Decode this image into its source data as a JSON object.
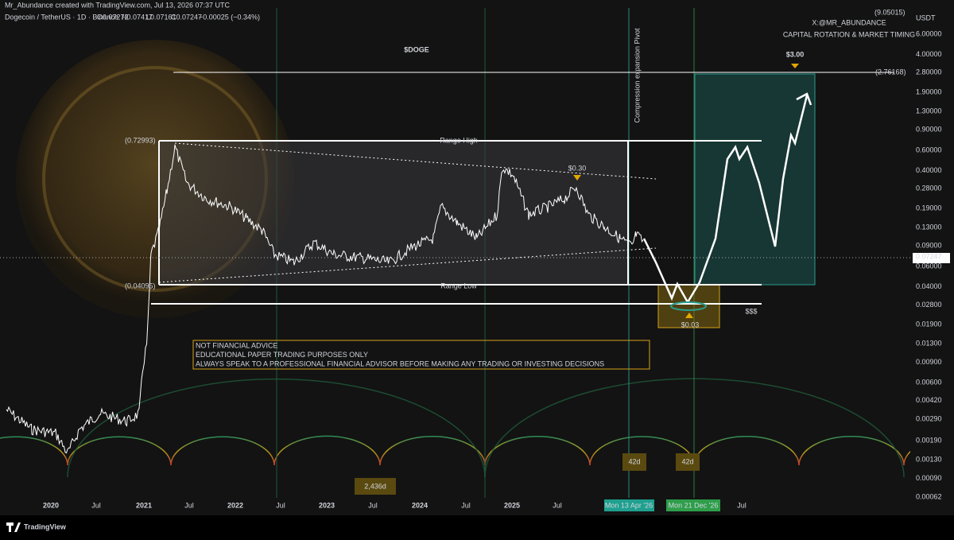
{
  "header": {
    "credit": "Mr_Abundance created with TradingView.com, Jul 13, 2026 07:37 UTC",
    "symbol": "Dogecoin / TetherUS · 1D · Binance",
    "ohlc": [
      "O0.07272",
      "H0.07417",
      "L0.07161",
      "C0.07247",
      "−0.00025 (−0.34%)"
    ]
  },
  "chart": {
    "title": "$DOGE",
    "author": "X:@MR_ABUNDANCE",
    "tagline": "CAPITAL ROTATION & MARKET TIMING",
    "pivot_label": "Compression expansion Pivot",
    "annotations": {
      "target": "$3.00",
      "top_level": "(2.76168)",
      "range_high_price": "(0.72993)",
      "range_high": "Range High",
      "range_low_price": "(0.04095)",
      "range_low": "Range Low",
      "mid_target": "$0.30",
      "bottom_target": "$0.03",
      "money": "$$$"
    },
    "disclaimer": [
      "NOT FINANCIAL ADVICE",
      "EDUCATIONAL PAPER TRADING PURPOSES ONLY",
      "ALWAYS SPEAK TO A PROFESSIONAL FINANCIAL ADVISOR BEFORE MAKING ANY TRADING OR INVESTING DECISIONS"
    ],
    "durations": [
      "42d",
      "42d",
      "2,436d"
    ],
    "price_axis": {
      "currency": "USDT",
      "top_label": "(9.05015)",
      "ticks": [
        {
          "value": 6,
          "label": "6.00000"
        },
        {
          "value": 4,
          "label": "4.00000"
        },
        {
          "value": 2.8,
          "label": "2.80000"
        },
        {
          "value": 1.9,
          "label": "1.90000"
        },
        {
          "value": 1.3,
          "label": "1.30000"
        },
        {
          "value": 0.9,
          "label": "0.90000"
        },
        {
          "value": 0.6,
          "label": "0.60000"
        },
        {
          "value": 0.4,
          "label": "0.40000"
        },
        {
          "value": 0.28,
          "label": "0.28000"
        },
        {
          "value": 0.19,
          "label": "0.19000"
        },
        {
          "value": 0.13,
          "label": "0.13000"
        },
        {
          "value": 0.09,
          "label": "0.09000"
        },
        {
          "value": 0.06,
          "label": "0.06000"
        },
        {
          "value": 0.04,
          "label": "0.04000"
        },
        {
          "value": 0.028,
          "label": "0.02800"
        },
        {
          "value": 0.019,
          "label": "0.01900"
        },
        {
          "value": 0.013,
          "label": "0.01300"
        },
        {
          "value": 0.009,
          "label": "0.00900"
        },
        {
          "value": 0.006,
          "label": "0.00600"
        },
        {
          "value": 0.0042,
          "label": "0.00420"
        },
        {
          "value": 0.0029,
          "label": "0.00290"
        },
        {
          "value": 0.0019,
          "label": "0.00190"
        },
        {
          "value": 0.0013,
          "label": "0.00130"
        },
        {
          "value": 0.0009,
          "label": "0.00090"
        },
        {
          "value": 0.00062,
          "label": "0.00062"
        }
      ],
      "last_price": {
        "value": 0.07247,
        "label": "0.07247"
      }
    },
    "time_axis": {
      "labels": [
        "2020",
        "Jul",
        "2021",
        "Jul",
        "2022",
        "Jul",
        "2023",
        "Jul",
        "2024",
        "Jul",
        "2025",
        "Jul",
        "Jul"
      ],
      "markers": [
        "Mon 13 Apr '26",
        "Mon 21 Dec '26"
      ]
    }
  },
  "footer": {
    "brand": "TradingView"
  }
}
